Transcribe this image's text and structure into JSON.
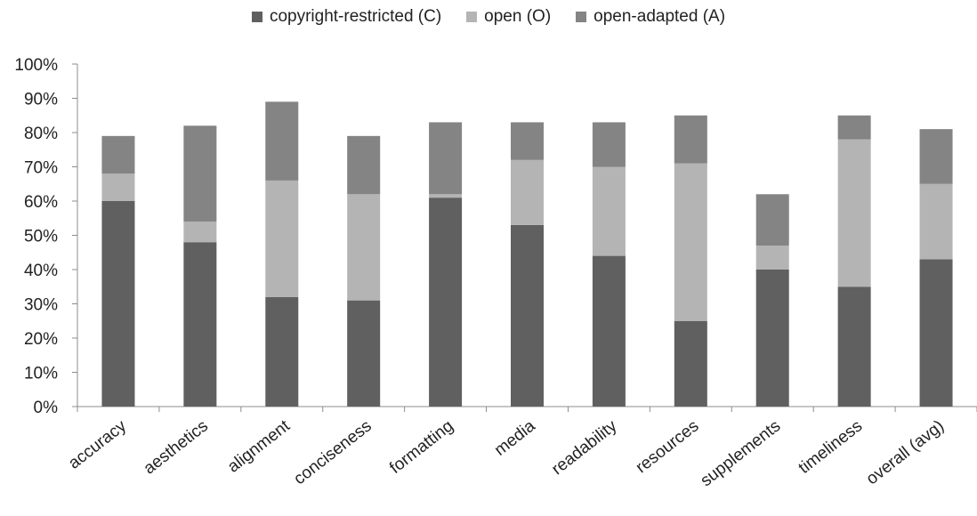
{
  "chart_data": {
    "type": "bar",
    "stacked": true,
    "categories": [
      "accuracy",
      "aesthetics",
      "alignment",
      "conciseness",
      "formatting",
      "media",
      "readability",
      "resources",
      "supplements",
      "timeliness",
      "overall (avg)"
    ],
    "series": [
      {
        "name": "copyright-restricted (C)",
        "color": "#606060",
        "values": [
          60,
          48,
          32,
          31,
          61,
          53,
          44,
          25,
          40,
          35,
          43
        ]
      },
      {
        "name": "open (O)",
        "color": "#b4b4b4",
        "values": [
          8,
          6,
          34,
          31,
          1,
          19,
          26,
          46,
          7,
          43,
          22
        ]
      },
      {
        "name": "open-adapted (A)",
        "color": "#848484",
        "values": [
          11,
          28,
          23,
          17,
          21,
          11,
          13,
          14,
          15,
          7,
          16
        ]
      }
    ],
    "ylim": [
      0,
      100
    ],
    "yticks": [
      "0%",
      "10%",
      "20%",
      "30%",
      "40%",
      "50%",
      "60%",
      "70%",
      "80%",
      "90%",
      "100%"
    ],
    "legend_position": "top",
    "grid": false
  }
}
